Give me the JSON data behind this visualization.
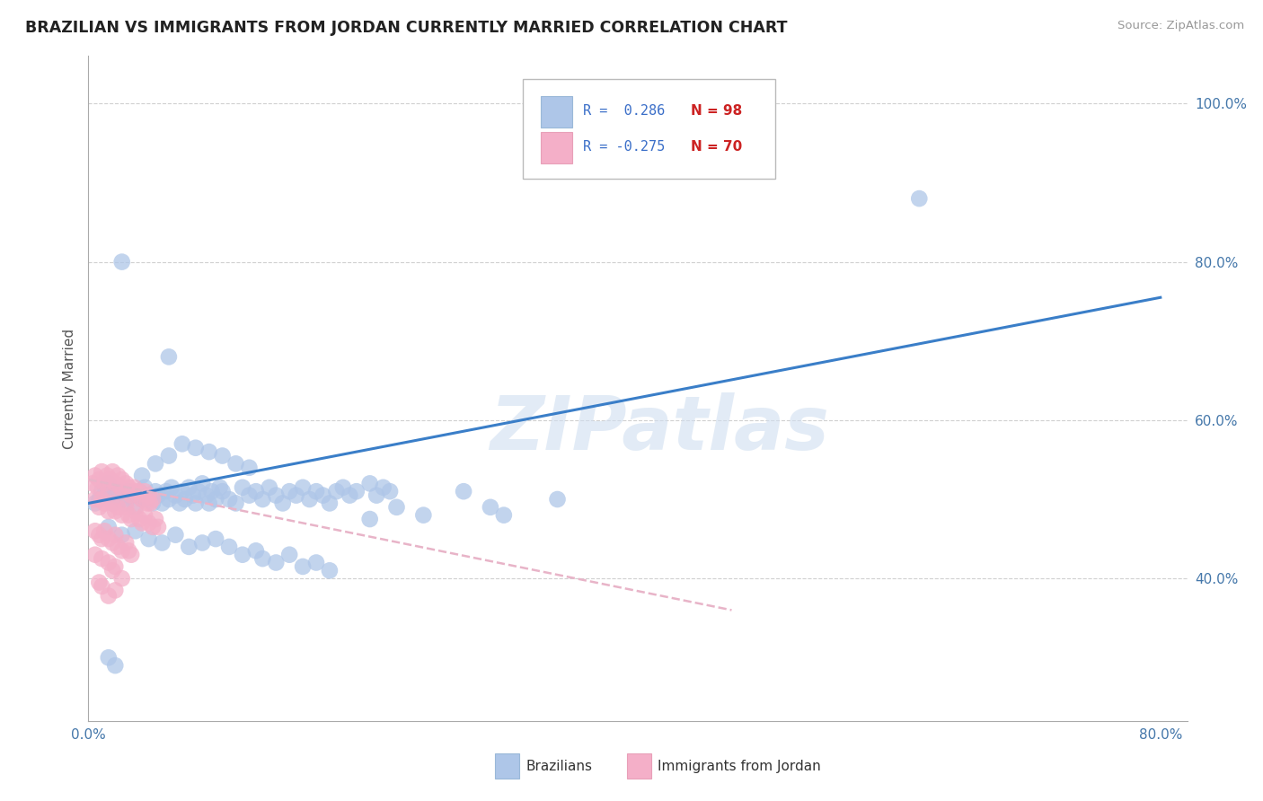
{
  "title": "BRAZILIAN VS IMMIGRANTS FROM JORDAN CURRENTLY MARRIED CORRELATION CHART",
  "source": "Source: ZipAtlas.com",
  "ylabel": "Currently Married",
  "watermark": "ZIPatlas",
  "legend_blue_r": "R =  0.286",
  "legend_blue_n": "N = 98",
  "legend_pink_r": "R = -0.275",
  "legend_pink_n": "N = 70",
  "xlim": [
    0.0,
    0.82
  ],
  "ylim": [
    0.22,
    1.06
  ],
  "xticks": [
    0.0,
    0.1,
    0.2,
    0.3,
    0.4,
    0.5,
    0.6,
    0.7,
    0.8
  ],
  "yticks": [
    0.4,
    0.6,
    0.8,
    1.0
  ],
  "blue_color": "#aec6e8",
  "pink_color": "#f4afc8",
  "blue_line_color": "#3a7ec8",
  "pink_line_color": "#e8b4c8",
  "grid_color": "#d0d0d0",
  "blue_scatter": [
    [
      0.005,
      0.495
    ],
    [
      0.008,
      0.5
    ],
    [
      0.01,
      0.51
    ],
    [
      0.012,
      0.505
    ],
    [
      0.015,
      0.52
    ],
    [
      0.018,
      0.495
    ],
    [
      0.02,
      0.505
    ],
    [
      0.022,
      0.51
    ],
    [
      0.025,
      0.5
    ],
    [
      0.028,
      0.495
    ],
    [
      0.03,
      0.51
    ],
    [
      0.032,
      0.505
    ],
    [
      0.035,
      0.49
    ],
    [
      0.038,
      0.51
    ],
    [
      0.04,
      0.5
    ],
    [
      0.042,
      0.515
    ],
    [
      0.045,
      0.505
    ],
    [
      0.048,
      0.495
    ],
    [
      0.05,
      0.51
    ],
    [
      0.052,
      0.505
    ],
    [
      0.055,
      0.495
    ],
    [
      0.058,
      0.51
    ],
    [
      0.06,
      0.5
    ],
    [
      0.062,
      0.515
    ],
    [
      0.065,
      0.505
    ],
    [
      0.068,
      0.495
    ],
    [
      0.07,
      0.51
    ],
    [
      0.072,
      0.5
    ],
    [
      0.075,
      0.515
    ],
    [
      0.078,
      0.505
    ],
    [
      0.08,
      0.495
    ],
    [
      0.082,
      0.51
    ],
    [
      0.085,
      0.52
    ],
    [
      0.088,
      0.505
    ],
    [
      0.09,
      0.495
    ],
    [
      0.092,
      0.51
    ],
    [
      0.095,
      0.5
    ],
    [
      0.098,
      0.515
    ],
    [
      0.1,
      0.51
    ],
    [
      0.105,
      0.5
    ],
    [
      0.11,
      0.495
    ],
    [
      0.115,
      0.515
    ],
    [
      0.12,
      0.505
    ],
    [
      0.125,
      0.51
    ],
    [
      0.13,
      0.5
    ],
    [
      0.135,
      0.515
    ],
    [
      0.14,
      0.505
    ],
    [
      0.145,
      0.495
    ],
    [
      0.15,
      0.51
    ],
    [
      0.155,
      0.505
    ],
    [
      0.16,
      0.515
    ],
    [
      0.165,
      0.5
    ],
    [
      0.17,
      0.51
    ],
    [
      0.175,
      0.505
    ],
    [
      0.18,
      0.495
    ],
    [
      0.185,
      0.51
    ],
    [
      0.19,
      0.515
    ],
    [
      0.195,
      0.505
    ],
    [
      0.2,
      0.51
    ],
    [
      0.21,
      0.52
    ],
    [
      0.215,
      0.505
    ],
    [
      0.22,
      0.515
    ],
    [
      0.225,
      0.51
    ],
    [
      0.04,
      0.53
    ],
    [
      0.05,
      0.545
    ],
    [
      0.06,
      0.555
    ],
    [
      0.07,
      0.57
    ],
    [
      0.08,
      0.565
    ],
    [
      0.09,
      0.56
    ],
    [
      0.1,
      0.555
    ],
    [
      0.11,
      0.545
    ],
    [
      0.12,
      0.54
    ],
    [
      0.015,
      0.465
    ],
    [
      0.025,
      0.455
    ],
    [
      0.035,
      0.46
    ],
    [
      0.045,
      0.45
    ],
    [
      0.055,
      0.445
    ],
    [
      0.065,
      0.455
    ],
    [
      0.075,
      0.44
    ],
    [
      0.085,
      0.445
    ],
    [
      0.095,
      0.45
    ],
    [
      0.105,
      0.44
    ],
    [
      0.115,
      0.43
    ],
    [
      0.125,
      0.435
    ],
    [
      0.13,
      0.425
    ],
    [
      0.14,
      0.42
    ],
    [
      0.15,
      0.43
    ],
    [
      0.16,
      0.415
    ],
    [
      0.17,
      0.42
    ],
    [
      0.18,
      0.41
    ],
    [
      0.21,
      0.475
    ],
    [
      0.23,
      0.49
    ],
    [
      0.25,
      0.48
    ],
    [
      0.28,
      0.51
    ],
    [
      0.3,
      0.49
    ],
    [
      0.31,
      0.48
    ],
    [
      0.06,
      0.68
    ],
    [
      0.35,
      0.5
    ],
    [
      0.025,
      0.8
    ],
    [
      0.62,
      0.88
    ],
    [
      0.015,
      0.3
    ],
    [
      0.02,
      0.29
    ]
  ],
  "pink_scatter": [
    [
      0.003,
      0.52
    ],
    [
      0.005,
      0.53
    ],
    [
      0.007,
      0.515
    ],
    [
      0.008,
      0.525
    ],
    [
      0.01,
      0.535
    ],
    [
      0.012,
      0.52
    ],
    [
      0.014,
      0.53
    ],
    [
      0.015,
      0.51
    ],
    [
      0.016,
      0.525
    ],
    [
      0.018,
      0.535
    ],
    [
      0.02,
      0.52
    ],
    [
      0.022,
      0.53
    ],
    [
      0.024,
      0.515
    ],
    [
      0.025,
      0.525
    ],
    [
      0.026,
      0.51
    ],
    [
      0.028,
      0.52
    ],
    [
      0.03,
      0.515
    ],
    [
      0.032,
      0.505
    ],
    [
      0.034,
      0.515
    ],
    [
      0.035,
      0.51
    ],
    [
      0.036,
      0.505
    ],
    [
      0.038,
      0.51
    ],
    [
      0.04,
      0.5
    ],
    [
      0.042,
      0.51
    ],
    [
      0.044,
      0.495
    ],
    [
      0.045,
      0.505
    ],
    [
      0.046,
      0.495
    ],
    [
      0.048,
      0.5
    ],
    [
      0.005,
      0.5
    ],
    [
      0.008,
      0.49
    ],
    [
      0.01,
      0.5
    ],
    [
      0.012,
      0.495
    ],
    [
      0.015,
      0.485
    ],
    [
      0.018,
      0.495
    ],
    [
      0.02,
      0.485
    ],
    [
      0.022,
      0.49
    ],
    [
      0.025,
      0.48
    ],
    [
      0.028,
      0.49
    ],
    [
      0.03,
      0.48
    ],
    [
      0.032,
      0.475
    ],
    [
      0.035,
      0.485
    ],
    [
      0.038,
      0.475
    ],
    [
      0.04,
      0.47
    ],
    [
      0.042,
      0.48
    ],
    [
      0.045,
      0.47
    ],
    [
      0.048,
      0.465
    ],
    [
      0.05,
      0.475
    ],
    [
      0.052,
      0.465
    ],
    [
      0.005,
      0.46
    ],
    [
      0.008,
      0.455
    ],
    [
      0.01,
      0.45
    ],
    [
      0.012,
      0.46
    ],
    [
      0.015,
      0.45
    ],
    [
      0.018,
      0.445
    ],
    [
      0.02,
      0.455
    ],
    [
      0.022,
      0.44
    ],
    [
      0.025,
      0.435
    ],
    [
      0.028,
      0.445
    ],
    [
      0.03,
      0.435
    ],
    [
      0.032,
      0.43
    ],
    [
      0.015,
      0.42
    ],
    [
      0.018,
      0.41
    ],
    [
      0.02,
      0.415
    ],
    [
      0.025,
      0.4
    ],
    [
      0.008,
      0.395
    ],
    [
      0.01,
      0.39
    ],
    [
      0.02,
      0.385
    ],
    [
      0.015,
      0.378
    ],
    [
      0.005,
      0.43
    ],
    [
      0.01,
      0.425
    ]
  ],
  "blue_line_x": [
    0.0,
    0.8
  ],
  "blue_line_y": [
    0.495,
    0.755
  ],
  "pink_line_x": [
    0.0,
    0.48
  ],
  "pink_line_y": [
    0.525,
    0.36
  ],
  "figsize": [
    14.06,
    8.92
  ],
  "dpi": 100
}
